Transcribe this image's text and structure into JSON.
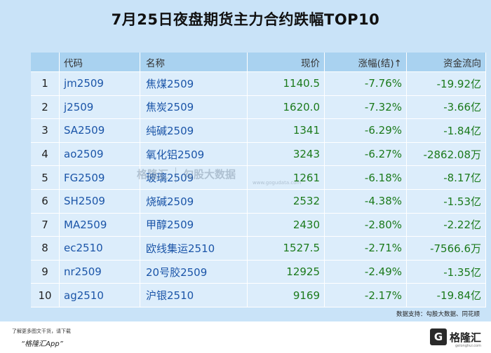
{
  "title": "7月25日夜盘期货主力合约跌幅TOP10",
  "headers": {
    "code": "代码",
    "name": "名称",
    "price": "现价",
    "change": "涨幅(结)↑",
    "flow": "资金流向"
  },
  "rows": [
    {
      "n": "1",
      "code": "jm2509",
      "name": "焦煤2509",
      "price": "1140.5",
      "change": "-7.76%",
      "flow": "-19.92亿"
    },
    {
      "n": "2",
      "code": "j2509",
      "name": "焦炭2509",
      "price": "1620.0",
      "change": "-7.32%",
      "flow": "-3.66亿"
    },
    {
      "n": "3",
      "code": "SA2509",
      "name": "纯碱2509",
      "price": "1341",
      "change": "-6.29%",
      "flow": "-1.84亿"
    },
    {
      "n": "4",
      "code": "ao2509",
      "name": "氧化铝2509",
      "price": "3243",
      "change": "-6.27%",
      "flow": "-2862.08万"
    },
    {
      "n": "5",
      "code": "FG2509",
      "name": "玻璃2509",
      "price": "1261",
      "change": "-6.18%",
      "flow": "-8.17亿"
    },
    {
      "n": "6",
      "code": "SH2509",
      "name": "烧碱2509",
      "price": "2532",
      "change": "-4.38%",
      "flow": "-1.53亿"
    },
    {
      "n": "7",
      "code": "MA2509",
      "name": "甲醇2509",
      "price": "2430",
      "change": "-2.80%",
      "flow": "-2.22亿"
    },
    {
      "n": "8",
      "code": "ec2510",
      "name": "欧线集运2510",
      "price": "1527.5",
      "change": "-2.71%",
      "flow": "-7566.6万"
    },
    {
      "n": "9",
      "code": "nr2509",
      "name": "20号胶2509",
      "price": "12925",
      "change": "-2.49%",
      "flow": "-1.35亿"
    },
    {
      "n": "10",
      "code": "ag2510",
      "name": "沪银2510",
      "price": "9169",
      "change": "-2.17%",
      "flow": "-19.84亿"
    }
  ],
  "watermark": {
    "brand": "格隆汇",
    "brand2": "勾股大数据",
    "url": "www.gogudata.com"
  },
  "source": "数据支持：勾股大数据、同花顺",
  "footer": {
    "line1": "了解更多图文干货，请下载",
    "line2": "“格隆汇App”",
    "logo_letter": "G",
    "logo_text": "格隆汇",
    "logo_url": "gelonghui.com"
  },
  "colors": {
    "background": "#c9e3f8",
    "header_bg": "#a9d2f0",
    "row_bg": "#dcedfb",
    "code_text": "#1b55a8",
    "value_text": "#1b7a1b"
  }
}
